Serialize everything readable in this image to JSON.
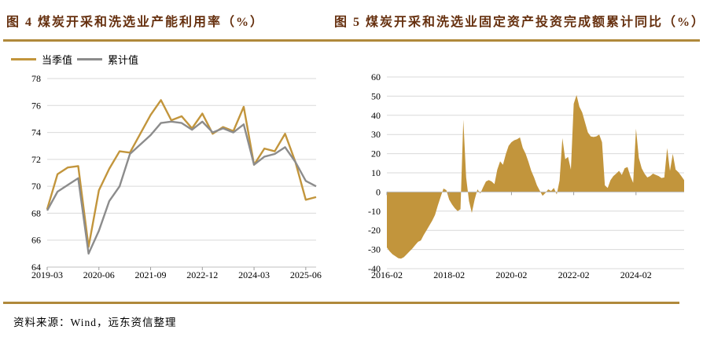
{
  "colors": {
    "gold": "#C2953C",
    "gray": "#8C8C8C",
    "rule_gold": "#B0893B",
    "title_text": "#66300F",
    "gridline": "#D9D9D9",
    "axis_line": "#BFBFBF",
    "tick_mark": "#9a9a9a"
  },
  "footer": {
    "source_label": "资料来源：Wind，远东资信整理"
  },
  "chart_data": [
    {
      "id": "capacity-utilization",
      "type": "line",
      "title": "图 4 煤炭开采和洗选业产能利用率（%）",
      "legend_position": "top-left",
      "grid": true,
      "ylim": [
        64,
        78
      ],
      "y_ticks": [
        78,
        76,
        74,
        72,
        70,
        68,
        66,
        64
      ],
      "x_tick_labels": [
        "2019-03",
        "2020-06",
        "2021-09",
        "2022-12",
        "2024-03",
        "2025-06"
      ],
      "x_tick_indices": [
        0,
        5,
        10,
        15,
        20,
        25
      ],
      "categories": [
        "2019-03",
        "2019-06",
        "2019-09",
        "2019-12",
        "2020-03",
        "2020-06",
        "2020-09",
        "2020-12",
        "2021-03",
        "2021-06",
        "2021-09",
        "2021-12",
        "2022-03",
        "2022-06",
        "2022-09",
        "2022-12",
        "2023-03",
        "2023-06",
        "2023-09",
        "2023-12",
        "2024-03",
        "2024-06",
        "2024-09",
        "2024-12",
        "2025-03",
        "2025-06",
        "2025-09"
      ],
      "series": [
        {
          "name": "当季值",
          "color": "#C2953C",
          "values": [
            68.3,
            70.9,
            71.4,
            71.5,
            65.5,
            69.7,
            71.3,
            72.6,
            72.5,
            73.9,
            75.3,
            76.4,
            74.9,
            75.2,
            74.3,
            75.4,
            73.9,
            74.4,
            74.1,
            75.9,
            71.6,
            72.8,
            72.6,
            73.9,
            71.8,
            69.0,
            69.2
          ]
        },
        {
          "name": "累计值",
          "color": "#8C8C8C",
          "values": [
            68.2,
            69.6,
            70.1,
            70.6,
            65.0,
            66.7,
            68.9,
            70.0,
            72.4,
            73.1,
            73.8,
            74.7,
            74.8,
            74.7,
            74.2,
            74.8,
            74.0,
            74.3,
            74.0,
            74.6,
            71.6,
            72.2,
            72.4,
            72.9,
            71.8,
            70.4,
            70.0
          ]
        }
      ]
    },
    {
      "id": "fai-cumulative-yoy",
      "type": "area",
      "title": "图 5 煤炭开采和洗选业固定资产投资完成额累计同比（%）",
      "grid": true,
      "ylim": [
        -40,
        60
      ],
      "y_ticks": [
        60,
        50,
        40,
        30,
        20,
        10,
        0,
        -10,
        -20,
        -30,
        -40
      ],
      "x_tick_labels": [
        "2016-02",
        "2018-02",
        "2020-02",
        "2022-02",
        "2024-02"
      ],
      "x_tick_indices": [
        0,
        22,
        44,
        66,
        88
      ],
      "categories": [
        "2016-02",
        "2016-03",
        "2016-04",
        "2016-05",
        "2016-06",
        "2016-07",
        "2016-08",
        "2016-09",
        "2016-10",
        "2016-11",
        "2016-12",
        "2017-02",
        "2017-03",
        "2017-04",
        "2017-05",
        "2017-06",
        "2017-07",
        "2017-08",
        "2017-09",
        "2017-10",
        "2017-11",
        "2017-12",
        "2018-02",
        "2018-03",
        "2018-04",
        "2018-05",
        "2018-06",
        "2018-07",
        "2018-08",
        "2018-09",
        "2018-10",
        "2018-11",
        "2018-12",
        "2019-02",
        "2019-03",
        "2019-04",
        "2019-05",
        "2019-06",
        "2019-07",
        "2019-08",
        "2019-09",
        "2019-10",
        "2019-11",
        "2019-12",
        "2020-02",
        "2020-03",
        "2020-04",
        "2020-05",
        "2020-06",
        "2020-07",
        "2020-08",
        "2020-09",
        "2020-10",
        "2020-11",
        "2020-12",
        "2021-02",
        "2021-03",
        "2021-04",
        "2021-05",
        "2021-06",
        "2021-07",
        "2021-08",
        "2021-09",
        "2021-10",
        "2021-11",
        "2021-12",
        "2022-02",
        "2022-03",
        "2022-04",
        "2022-05",
        "2022-06",
        "2022-07",
        "2022-08",
        "2022-09",
        "2022-10",
        "2022-11",
        "2022-12",
        "2023-02",
        "2023-03",
        "2023-04",
        "2023-05",
        "2023-06",
        "2023-07",
        "2023-08",
        "2023-09",
        "2023-10",
        "2023-11",
        "2023-12",
        "2024-02",
        "2024-03",
        "2024-04",
        "2024-05",
        "2024-06",
        "2024-07",
        "2024-08",
        "2024-09",
        "2024-10",
        "2024-11",
        "2024-12",
        "2025-02",
        "2025-03",
        "2025-04",
        "2025-05",
        "2025-06",
        "2025-07",
        "2025-08"
      ],
      "series": [
        {
          "name": "累计同比",
          "color": "#C2953C",
          "values": [
            -29,
            -31,
            -32.5,
            -33.5,
            -34.5,
            -34.8,
            -34,
            -32.5,
            -31,
            -29.5,
            -27.7,
            -26,
            -25.3,
            -22.5,
            -20,
            -17.5,
            -15,
            -12,
            -7,
            -2.5,
            1.8,
            1,
            -4,
            -6.5,
            -8.5,
            -10,
            -9,
            37.7,
            7.6,
            -4.7,
            -10.9,
            -4,
            1.4,
            -0.8,
            2.5,
            5.5,
            6.2,
            5.5,
            4.1,
            11.7,
            16,
            14.2,
            19.7,
            24.1,
            26,
            27,
            27.5,
            28.5,
            23,
            20,
            15.8,
            11,
            7.6,
            3.5,
            0.7,
            -2,
            -0.5,
            1.4,
            0.5,
            2.1,
            -1.3,
            6,
            28.1,
            17.1,
            18.3,
            11.7,
            46,
            50.6,
            44.5,
            41.5,
            36.3,
            31.1,
            29,
            28.7,
            29,
            30,
            26,
            3.5,
            2.1,
            6.2,
            8.3,
            9.6,
            11,
            8.9,
            12.4,
            13,
            8.3,
            4.8,
            33,
            17.8,
            12.4,
            9.6,
            7.6,
            8.3,
            9.6,
            8.9,
            8.3,
            7.3,
            7.6,
            22.9,
            11,
            19.9,
            11.7,
            10.3,
            8.3,
            6.2
          ]
        }
      ]
    }
  ]
}
